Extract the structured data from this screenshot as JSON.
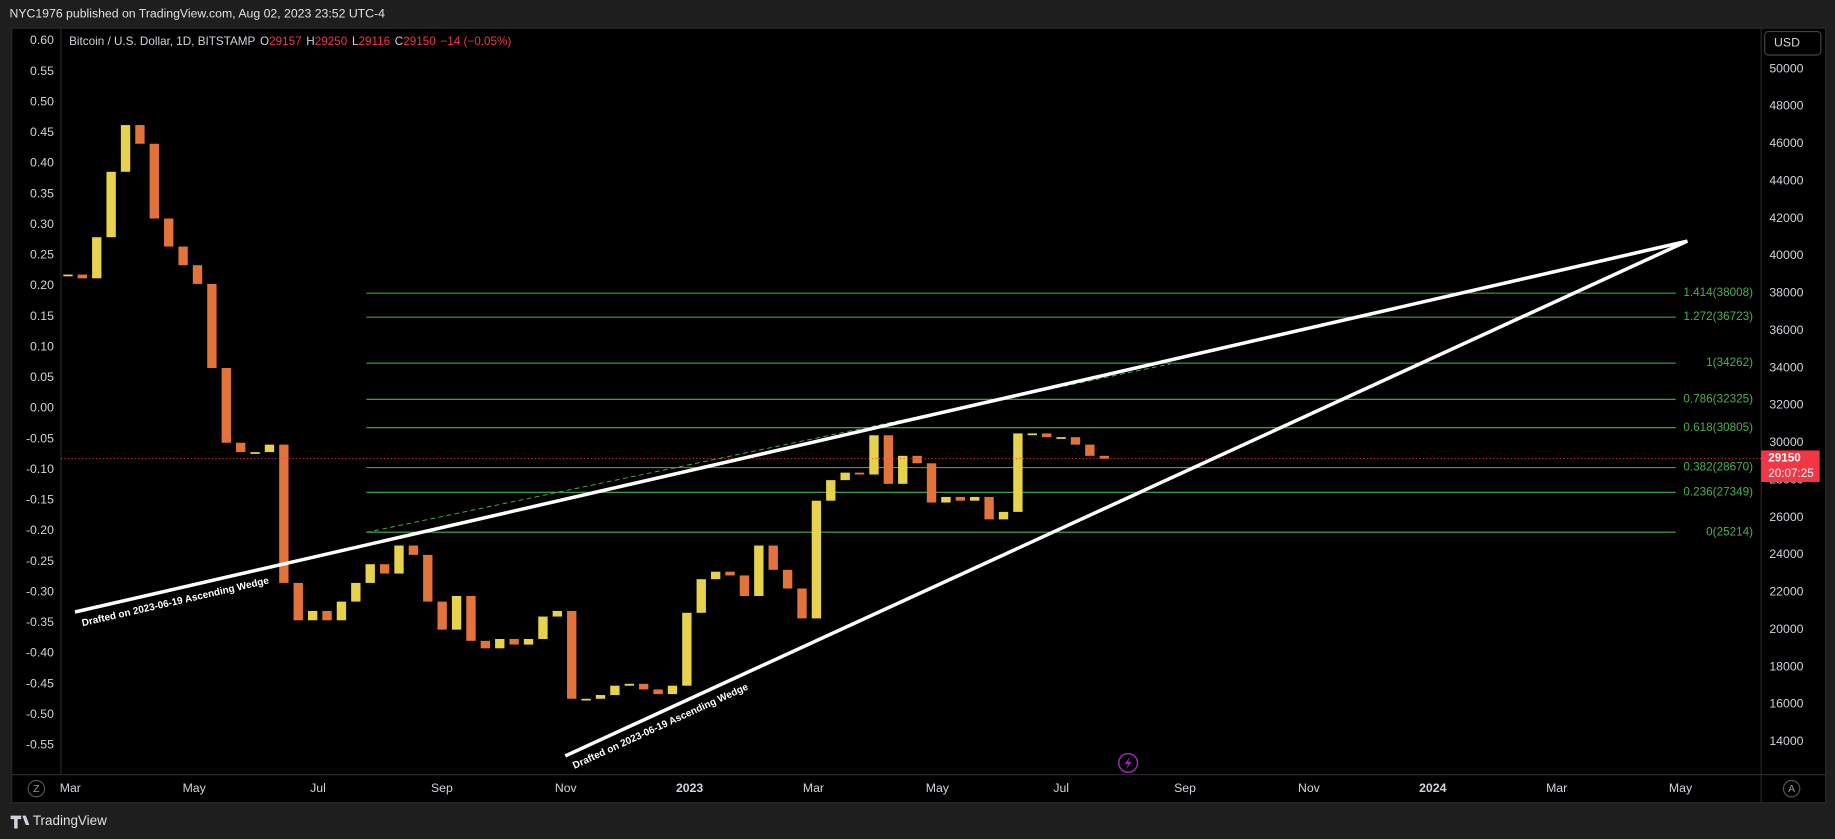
{
  "header": "NYC1976 published on TradingView.com, Aug 02, 2023 23:52 UTC-4",
  "footer": "TradingView",
  "buttons": [
    "Z",
    "A"
  ],
  "chart_data": {
    "type": "candlestick",
    "symbol": "Bitcoin / U.S. Dollar, 1D, BITSTAMP",
    "ohlc": [
      {
        "label": "O",
        "value": 29157
      },
      {
        "label": "H",
        "value": 29250
      },
      {
        "label": "L",
        "value": 29116
      },
      {
        "label": "C",
        "value": 29150
      }
    ],
    "change": {
      "value": -14,
      "label": "−14 (−0.05%)"
    },
    "currency": "USD",
    "last_price": 29150,
    "countdown": "20:07:25",
    "closes": [
      39000,
      38800,
      41000,
      44500,
      47000,
      46000,
      42000,
      40500,
      39500,
      38500,
      34000,
      30000,
      29500,
      29500,
      29900,
      22500,
      20500,
      21000,
      20500,
      21500,
      22500,
      23500,
      23000,
      24500,
      24000,
      21500,
      20000,
      21800,
      19400,
      19000,
      19500,
      19200,
      19500,
      20700,
      21000,
      16300,
      16300,
      16500,
      17000,
      17100,
      16800,
      16550,
      17000,
      20900,
      22700,
      23100,
      22900,
      21800,
      24500,
      23200,
      22200,
      20600,
      26900,
      28000,
      28400,
      28300,
      30400,
      27800,
      29300,
      28900,
      26800,
      27100,
      26900,
      27100,
      25900,
      26300,
      30500,
      30500,
      30300,
      30300,
      29900,
      29300,
      29150
    ],
    "ylim": [
      12240,
      52190
    ],
    "yticks": [
      14000,
      16000,
      18000,
      20000,
      22000,
      24000,
      26000,
      28000,
      30000,
      32000,
      34000,
      36000,
      38000,
      40000,
      42000,
      44000,
      46000,
      48000,
      50000
    ],
    "y2lim": [
      -0.598,
      0.621
    ],
    "y2ticks": [
      {
        "value": 0.6,
        "label": "0.60"
      },
      {
        "value": 0.55,
        "label": "0.55"
      },
      {
        "value": 0.5,
        "label": "0.50"
      },
      {
        "value": 0.45,
        "label": "0.45"
      },
      {
        "value": 0.4,
        "label": "0.40"
      },
      {
        "value": 0.35,
        "label": "0.35"
      },
      {
        "value": 0.3,
        "label": "0.30"
      },
      {
        "value": 0.25,
        "label": "0.25"
      },
      {
        "value": 0.2,
        "label": "0.20"
      },
      {
        "value": 0.15,
        "label": "0.15"
      },
      {
        "value": 0.1,
        "label": "0.10"
      },
      {
        "value": 0.05,
        "label": "0.05"
      },
      {
        "value": 0,
        "label": "0.00"
      },
      {
        "value": -0.05,
        "label": "-0.05"
      },
      {
        "value": -0.1,
        "label": "-0.10"
      },
      {
        "value": -0.15,
        "label": "-0.15"
      },
      {
        "value": -0.2,
        "label": "-0.20"
      },
      {
        "value": -0.25,
        "label": "-0.25"
      },
      {
        "value": -0.3,
        "label": "-0.30"
      },
      {
        "value": -0.35,
        "label": "-0.35"
      },
      {
        "value": -0.4,
        "label": "-0.40"
      },
      {
        "value": -0.45,
        "label": "-0.45"
      },
      {
        "value": -0.5,
        "label": "-0.50"
      },
      {
        "value": -0.55,
        "label": "-0.55"
      }
    ],
    "xticks": [
      "Mar",
      "May",
      "Jul",
      "Sep",
      "Nov",
      "2023",
      "Mar",
      "May",
      "Jul",
      "Sep",
      "Nov",
      "2024",
      "Mar",
      "May"
    ],
    "fib_levels": [
      {
        "price": 38008,
        "label": "1.414(38008)"
      },
      {
        "price": 36723,
        "label": "1.272(36723)"
      },
      {
        "price": 34262,
        "label": "1(34262)"
      },
      {
        "price": 32325,
        "label": "0.786(32325)"
      },
      {
        "price": 30805,
        "label": "0.618(30805)"
      },
      {
        "price": 28670,
        "label": "0.382(28670)"
      },
      {
        "price": 27349,
        "label": "0.236(27349)"
      },
      {
        "price": 25214,
        "label": "0(25214)"
      }
    ],
    "annotations": [
      "Drafted on 2023-06-19 Ascending Wedge",
      "Drafted on 2023-06-19 Ascending Wedge"
    ]
  }
}
